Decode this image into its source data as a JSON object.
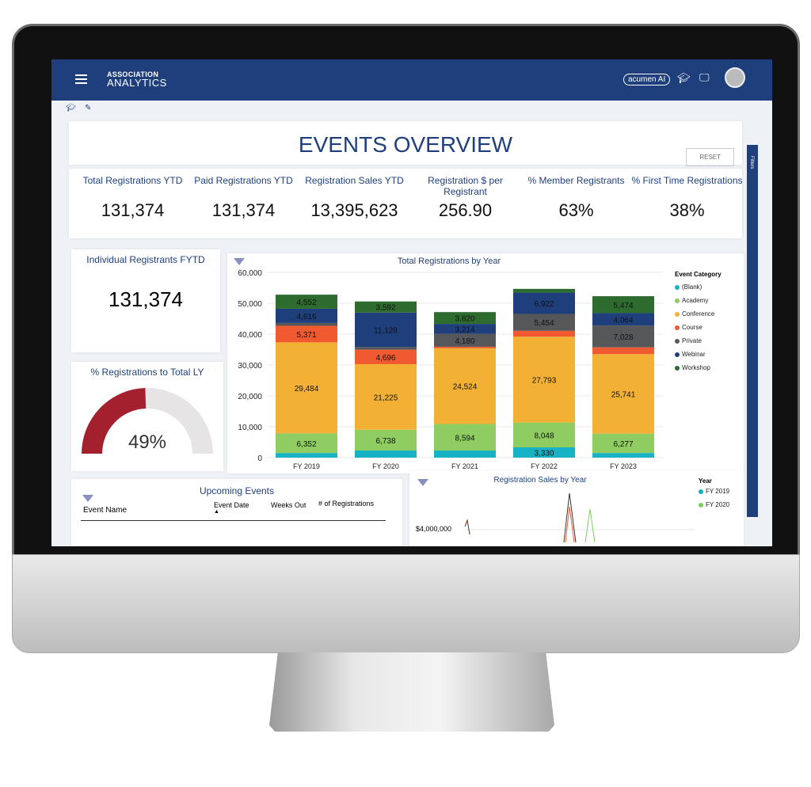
{
  "header": {
    "logo_line1": "ASSOCIATION",
    "logo_line2": "ANALYTICS",
    "brand": "acumen AI"
  },
  "page_title": "EVENTS OVERVIEW",
  "reset_label": "RESET",
  "filters_label": "Filters",
  "kpis": [
    {
      "label": "Total Registrations YTD",
      "value": "131,374"
    },
    {
      "label": "Paid Registrations YTD",
      "value": "131,374"
    },
    {
      "label": "Registration Sales YTD",
      "value": "13,395,623"
    },
    {
      "label": "Registration $ per Registrant",
      "value": "256.90"
    },
    {
      "label": "% Member Registrants",
      "value": "63%"
    },
    {
      "label": "% First Time Registrations",
      "value": "38%"
    }
  ],
  "individual": {
    "label": "Individual Registrants FYTD",
    "value": "131,374"
  },
  "gauge": {
    "label": "% Registrations to Total LY",
    "value_text": "49%",
    "value": 49,
    "fill_color": "#a4202e",
    "track_color": "#e6e4e4"
  },
  "upcoming": {
    "title": "Upcoming Events",
    "columns": [
      "Event Name",
      "Event Date",
      "Weeks Out",
      "# of Registrations"
    ]
  },
  "sales": {
    "title": "Registration Sales by Year",
    "y_tick": "$4,000,000",
    "legend_title": "Year",
    "legend": [
      {
        "name": "FY 2019",
        "color": "#0fb0c0"
      },
      {
        "name": "FY 2020",
        "color": "#7fcf5f"
      }
    ]
  },
  "chart_data": {
    "type": "bar",
    "stacked": true,
    "title": "Total Registrations by Year",
    "categories": [
      "FY 2019",
      "FY 2020",
      "FY 2021",
      "FY 2022",
      "FY 2023"
    ],
    "ylim": [
      0,
      60000
    ],
    "yticks": [
      "0",
      "10,000",
      "20,000",
      "30,000",
      "40,000",
      "50,000",
      "60,000"
    ],
    "grid": true,
    "legend_title": "Event Category",
    "legend_position": "right",
    "series": [
      {
        "name": "(Blank)",
        "color": "#17b2c3",
        "values": [
          1500,
          2300,
          2300,
          3330,
          1500
        ]
      },
      {
        "name": "Academy",
        "color": "#8fcd62",
        "values": [
          6352,
          6738,
          8594,
          8048,
          6277
        ]
      },
      {
        "name": "Conference",
        "color": "#f2b134",
        "values": [
          29484,
          21225,
          24524,
          27793,
          25741
        ]
      },
      {
        "name": "Course",
        "color": "#f15a30",
        "values": [
          5371,
          4696,
          500,
          1900,
          2200
        ]
      },
      {
        "name": "Private",
        "color": "#555759",
        "values": [
          900,
          900,
          4180,
          5454,
          7028
        ]
      },
      {
        "name": "Webinar",
        "color": "#1f3f7c",
        "values": [
          4616,
          11128,
          3214,
          6922,
          4064
        ]
      },
      {
        "name": "Workshop",
        "color": "#2e6b2f",
        "values": [
          4552,
          3592,
          3820,
          1200,
          5474
        ]
      }
    ]
  }
}
